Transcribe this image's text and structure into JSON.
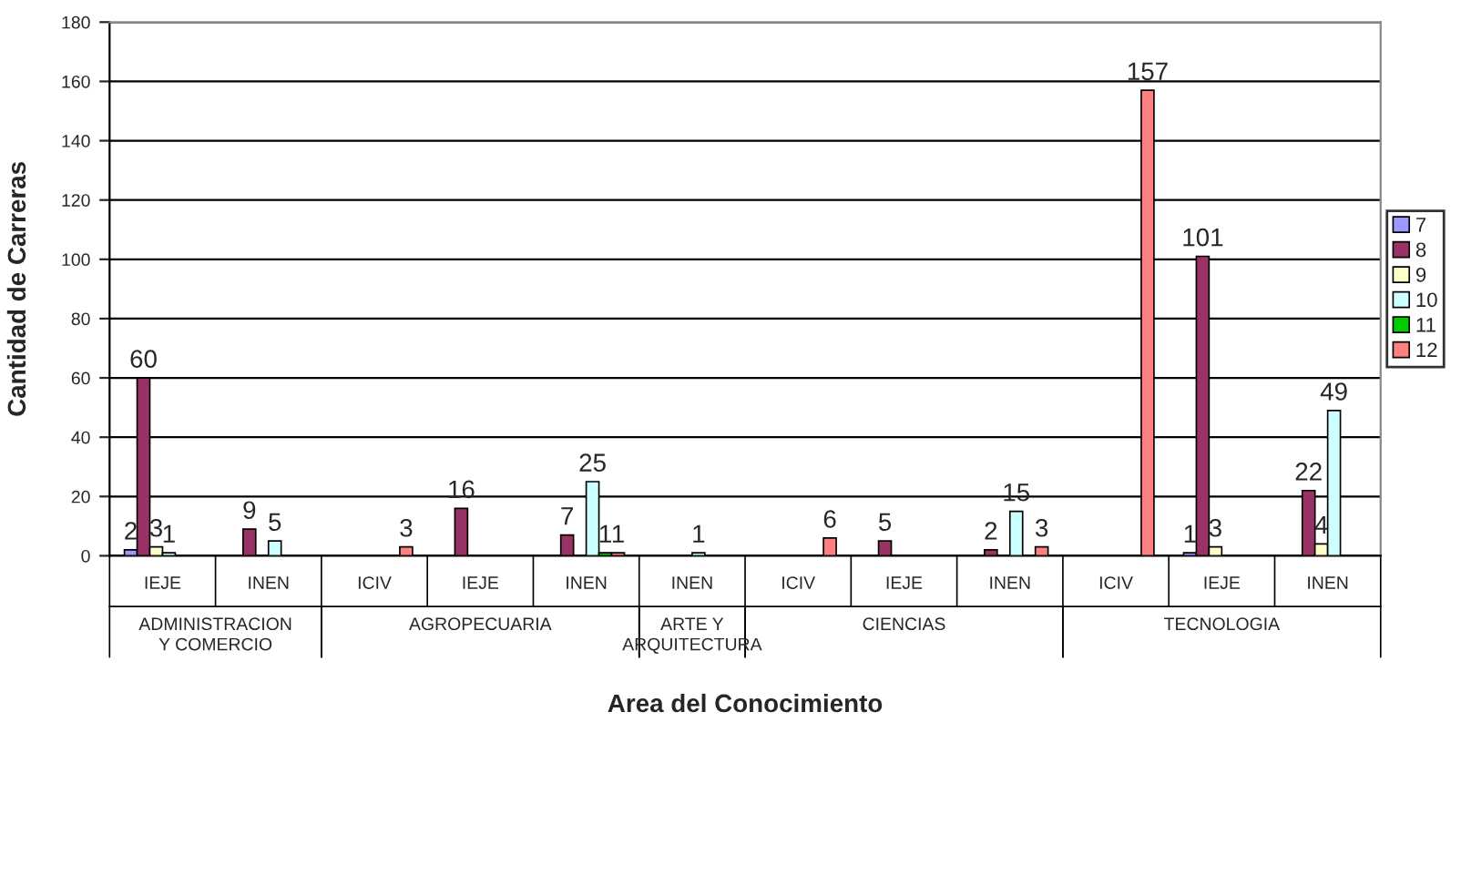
{
  "chart_data": {
    "type": "bar",
    "xlabel": "Area del Conocimiento",
    "ylabel": "Cantidad de Carreras",
    "categories": [
      "IEJE",
      "INEN",
      "ICIV",
      "IEJE",
      "INEN",
      "INEN",
      "ICIV",
      "IEJE",
      "INEN",
      "ICIV",
      "IEJE",
      "INEN"
    ],
    "series": [
      {
        "name": "7",
        "color": "#9999ff",
        "values": [
          2,
          null,
          null,
          null,
          null,
          null,
          null,
          null,
          null,
          null,
          1,
          null
        ]
      },
      {
        "name": "8",
        "color": "#993366",
        "values": [
          60,
          9,
          null,
          16,
          7,
          null,
          null,
          5,
          2,
          null,
          101,
          22
        ]
      },
      {
        "name": "9",
        "color": "#ffffcc",
        "values": [
          3,
          null,
          null,
          null,
          null,
          null,
          null,
          null,
          null,
          null,
          3,
          4
        ]
      },
      {
        "name": "10",
        "color": "#ccffff",
        "values": [
          1,
          5,
          null,
          null,
          25,
          1,
          null,
          null,
          15,
          null,
          null,
          49
        ]
      },
      {
        "name": "11",
        "color": "#00cc00",
        "values": [
          null,
          null,
          null,
          null,
          1,
          null,
          null,
          null,
          null,
          null,
          null,
          null
        ]
      },
      {
        "name": "12",
        "color": "#ff8080",
        "values": [
          null,
          null,
          3,
          null,
          1,
          null,
          6,
          null,
          3,
          157,
          null,
          null
        ]
      }
    ],
    "annotations": [
      "ADMINISTRACION\nY COMERCIO",
      "AGROPECUARIA",
      "ARTE Y\nARQUITECTURA",
      "CIENCIAS",
      "TECNOLOGIA"
    ],
    "ylim": [
      0,
      180
    ],
    "yticks": [
      0,
      20,
      40,
      60,
      80,
      100,
      120,
      140,
      160,
      180
    ],
    "grid": "y",
    "legend": "right",
    "data_labels": true
  }
}
